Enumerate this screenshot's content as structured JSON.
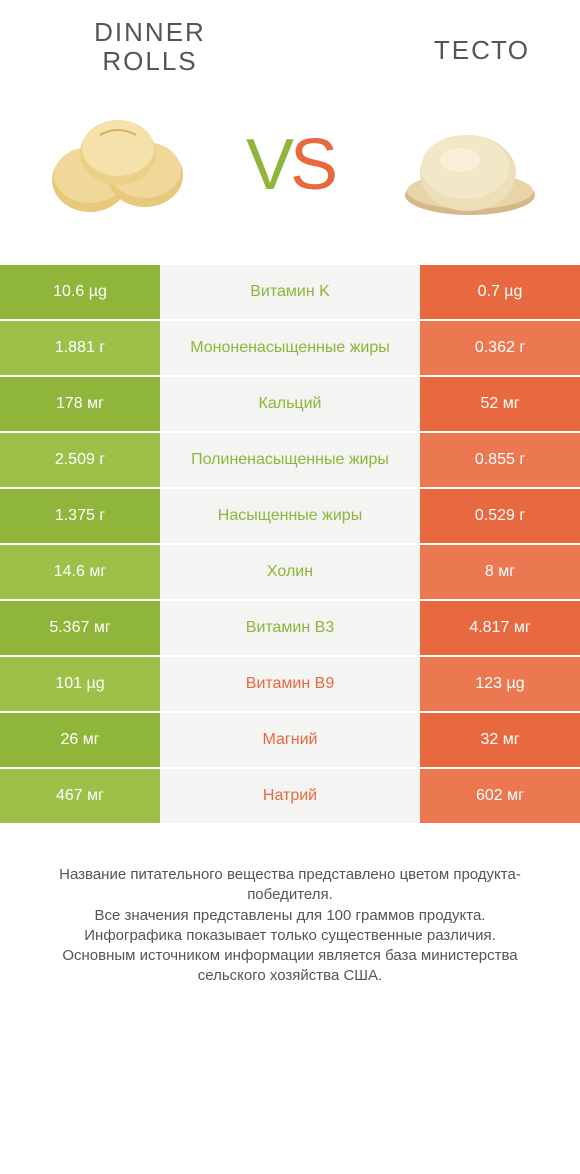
{
  "colors": {
    "green": "#8fb53a",
    "green_light": "#9cc048",
    "green_dark": "#7ea332",
    "orange": "#e8693f",
    "orange_light": "#eb7850",
    "orange_dark": "#e05a2e",
    "mid_bg": "#f4f4f2",
    "text": "#555555"
  },
  "header": {
    "left_title": "DINNER\nROLLS",
    "right_title": "ТЕСТО",
    "vs_v": "V",
    "vs_s": "S"
  },
  "rows": [
    {
      "left": "10.6 µg",
      "label": "Витамин K",
      "right": "0.7 µg",
      "winner": "left"
    },
    {
      "left": "1.881 г",
      "label": "Мононенасыщенные жиры",
      "right": "0.362 г",
      "winner": "left"
    },
    {
      "left": "178 мг",
      "label": "Кальций",
      "right": "52 мг",
      "winner": "left"
    },
    {
      "left": "2.509 г",
      "label": "Полиненасыщенные жиры",
      "right": "0.855 г",
      "winner": "left"
    },
    {
      "left": "1.375 г",
      "label": "Насыщенные жиры",
      "right": "0.529 г",
      "winner": "left"
    },
    {
      "left": "14.6 мг",
      "label": "Холин",
      "right": "8 мг",
      "winner": "left"
    },
    {
      "left": "5.367 мг",
      "label": "Витамин B3",
      "right": "4.817 мг",
      "winner": "left"
    },
    {
      "left": "101 µg",
      "label": "Витамин B9",
      "right": "123 µg",
      "winner": "right"
    },
    {
      "left": "26 мг",
      "label": "Магний",
      "right": "32 мг",
      "winner": "right"
    },
    {
      "left": "467 мг",
      "label": "Натрий",
      "right": "602 мг",
      "winner": "right"
    }
  ],
  "footer": {
    "line1": "Название питательного вещества представлено цветом продукта-победителя.",
    "line2": "Все значения представлены для 100 граммов продукта.",
    "line3": "Инфографика показывает только существенные различия.",
    "line4": "Основным источником информации является база министерства сельского хозяйства США."
  }
}
